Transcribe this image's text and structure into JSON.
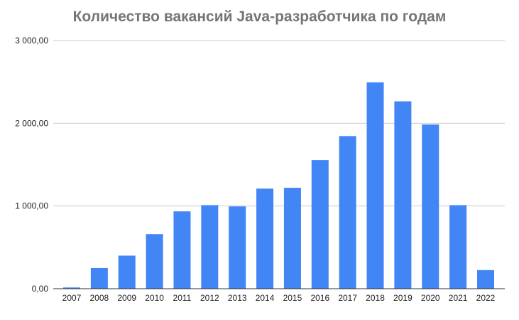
{
  "chart_data": {
    "type": "bar",
    "title": "Количество вакансий Java-разработчика по годам",
    "xlabel": "",
    "ylabel": "",
    "categories": [
      "2007",
      "2008",
      "2009",
      "2010",
      "2011",
      "2012",
      "2013",
      "2014",
      "2015",
      "2016",
      "2017",
      "2018",
      "2019",
      "2020",
      "2021",
      "2022"
    ],
    "values": [
      15,
      250,
      400,
      660,
      935,
      1010,
      995,
      1210,
      1220,
      1555,
      1845,
      2495,
      2265,
      1985,
      1010,
      225
    ],
    "ylim": [
      0,
      3000
    ],
    "yticks": [
      0,
      1000,
      2000,
      3000
    ],
    "ytick_labels": [
      "0,00",
      "1 000,00",
      "2 000,00",
      "3 000,00"
    ],
    "grid": true,
    "legend": "none",
    "bar_color": "#4285f4"
  }
}
